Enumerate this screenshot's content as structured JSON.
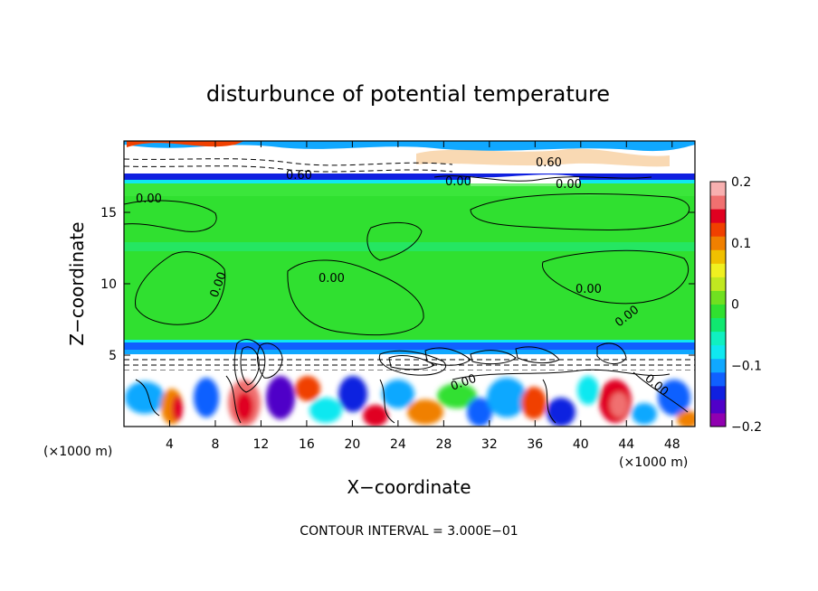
{
  "chart_data": {
    "type": "heatmap",
    "title": "disturbunce of potential temperature",
    "xlabel": "X−coordinate",
    "ylabel": "Z−coordinate",
    "x_unit_left": "(×1000 m)",
    "x_unit_right": "(×1000 m)",
    "xlim": [
      0,
      50
    ],
    "ylim": [
      0,
      20
    ],
    "x_ticks": [
      "4",
      "8",
      "12",
      "16",
      "20",
      "24",
      "28",
      "32",
      "36",
      "40",
      "44",
      "48"
    ],
    "y_ticks": [
      "5",
      "10",
      "15"
    ],
    "colorbar": {
      "range": [
        -0.2,
        0.2
      ],
      "tick_labels": [
        "0.2",
        "0.1",
        "0",
        "−0.1",
        "−0.2"
      ],
      "colors": [
        "#9000b0",
        "#5000c8",
        "#1020e0",
        "#1060ff",
        "#10a8ff",
        "#10e8f0",
        "#10f0c0",
        "#10e870",
        "#30e030",
        "#70e020",
        "#c0e820",
        "#f0f020",
        "#f0c000",
        "#f08000",
        "#f04000",
        "#e00020",
        "#f07070",
        "#f8b0b0"
      ]
    },
    "contour_labels": [
      "0.60",
      "0.00",
      "0.00",
      "0.00",
      "0.60",
      "0.00",
      "0.00",
      "0.00",
      "0.00",
      "0.00",
      "0.00",
      "0.00"
    ],
    "footnote": "CONTOUR INTERVAL = 3.000E−01"
  }
}
